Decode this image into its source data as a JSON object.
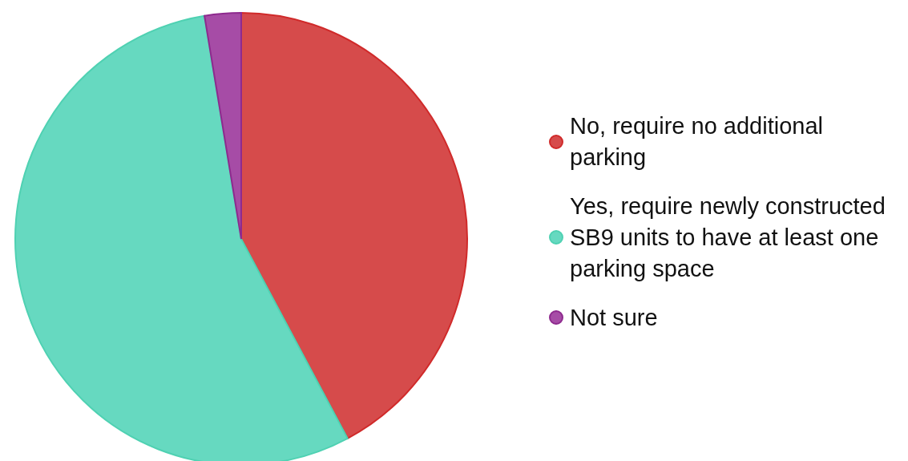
{
  "chart_data": {
    "type": "pie",
    "categories": [
      "No, require no additional parking",
      "Yes, require newly constructed SB9 units to have at least one parking space",
      "Not sure"
    ],
    "values": [
      42.2,
      55.2,
      2.6
    ],
    "colors": [
      "#d64b4b",
      "#66d9c0",
      "#a64ca6"
    ],
    "legend": "right"
  }
}
